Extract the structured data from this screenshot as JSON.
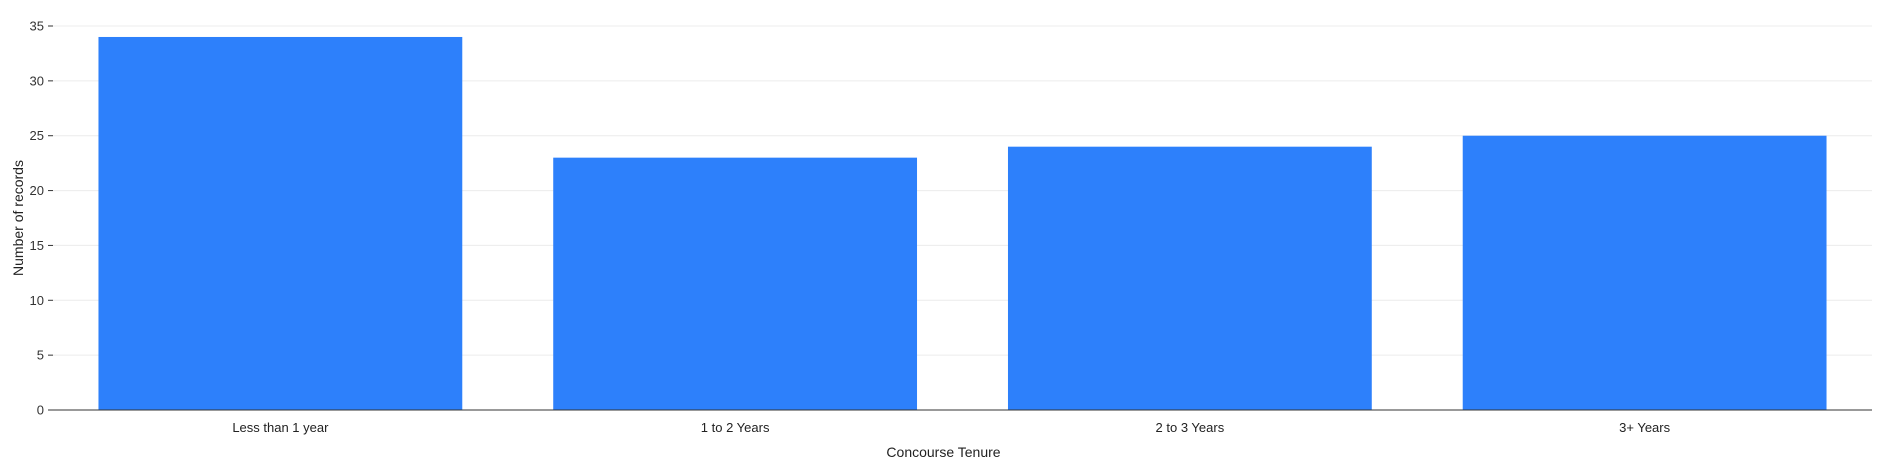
{
  "chart_data": {
    "type": "bar",
    "categories": [
      "Less than 1 year",
      "1 to 2 Years",
      "2 to 3 Years",
      "3+ Years"
    ],
    "values": [
      34,
      23,
      24,
      25
    ],
    "xlabel": "Concourse Tenure",
    "ylabel": "Number of records",
    "ylim": [
      0,
      35
    ],
    "yticks": [
      0,
      5,
      10,
      15,
      20,
      25,
      30,
      35
    ],
    "grid": true,
    "bar_color": "#2d80fb",
    "grid_color": "#ececec",
    "axis_color": "#333333"
  }
}
